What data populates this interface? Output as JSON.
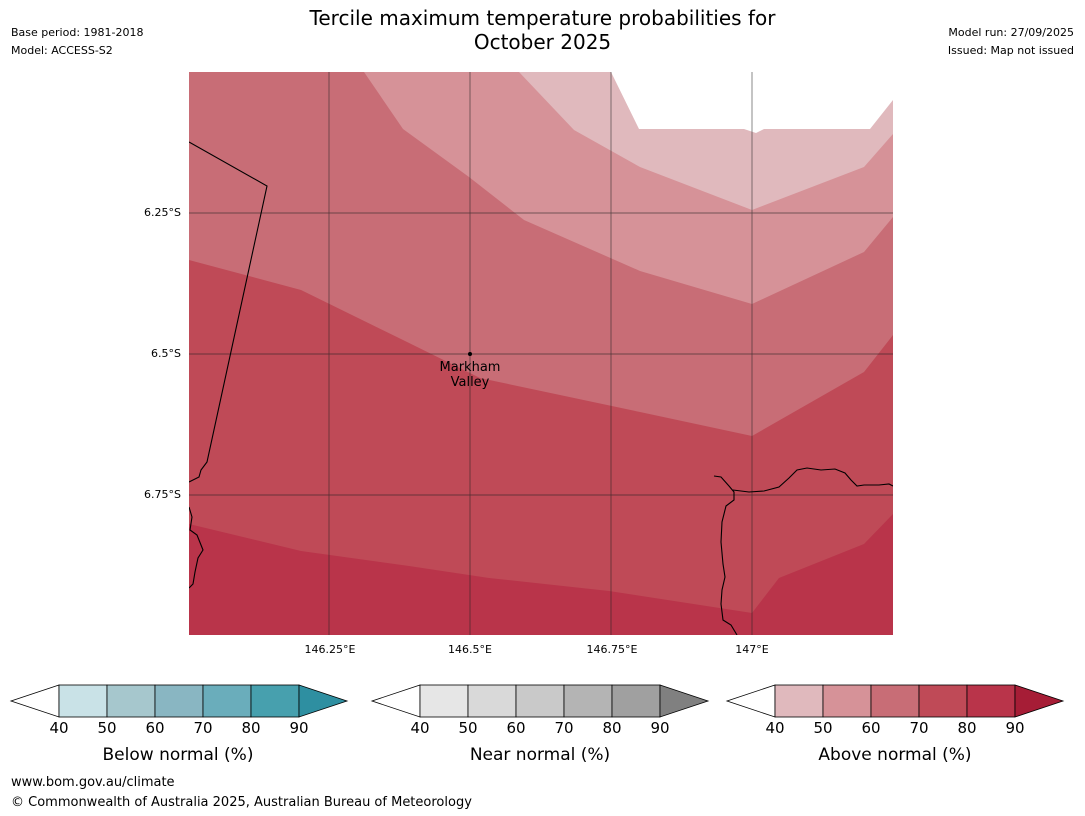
{
  "header": {
    "title_line1": "Tercile maximum temperature probabilities for",
    "title_line2": "October 2025",
    "base_period": "Base period: 1981-2018",
    "model": "Model: ACCESS-S2",
    "model_run": "Model run: 27/09/2025",
    "issued": "Issued: Map not issued"
  },
  "map": {
    "lat_labels": [
      "6.25°S",
      "6.5°S",
      "6.75°S"
    ],
    "lon_labels": [
      "146.25°E",
      "146.5°E",
      "146.75°E",
      "147°E"
    ],
    "place": {
      "name_line1": "Markham",
      "name_line2": "Valley",
      "lat": -6.5,
      "lon": 146.5
    },
    "probability_bands_above_normal": [
      50,
      60,
      70,
      80,
      90
    ]
  },
  "colorbars": [
    {
      "title": "Below normal (%)",
      "ticks": [
        "40",
        "50",
        "60",
        "70",
        "80",
        "90"
      ],
      "colors": [
        "#c9e2e7",
        "#a6c7cd",
        "#89b6c2",
        "#6aadbb",
        "#47a0ae",
        "#2e8fa1"
      ]
    },
    {
      "title": "Near normal (%)",
      "ticks": [
        "40",
        "50",
        "60",
        "70",
        "80",
        "90"
      ],
      "colors": [
        "#e6e6e6",
        "#d9d9d9",
        "#c9c9c9",
        "#b4b4b4",
        "#a0a0a0",
        "#808080"
      ]
    },
    {
      "title": "Above normal (%)",
      "ticks": [
        "40",
        "50",
        "60",
        "70",
        "80",
        "90"
      ],
      "colors": [
        "#e0b9bd",
        "#d69298",
        "#c86d76",
        "#bf4a57",
        "#b9344a",
        "#a61d36"
      ]
    }
  ],
  "footer": {
    "url": "www.bom.gov.au/climate",
    "copyright": "© Commonwealth of Australia 2025, Australian Bureau of Meteorology"
  }
}
